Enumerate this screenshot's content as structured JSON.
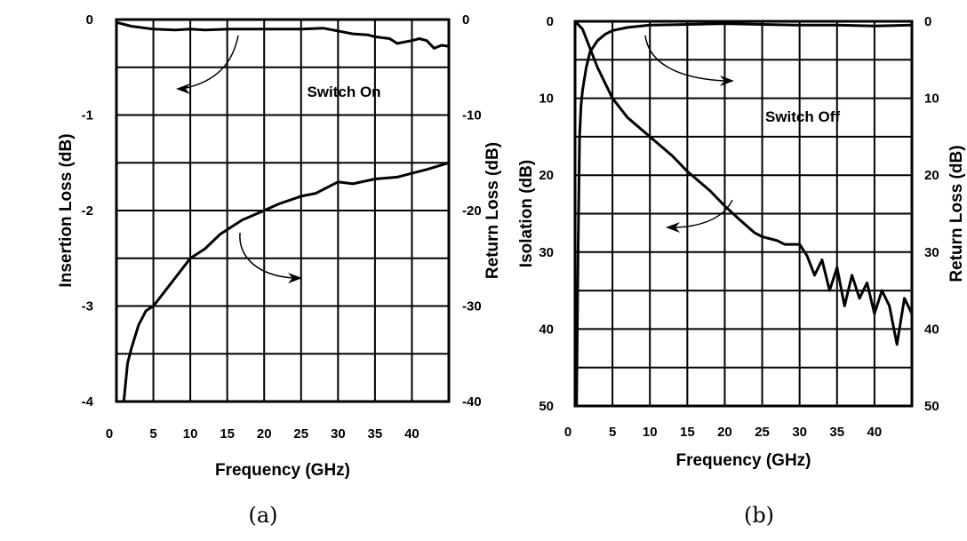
{
  "chart_data": [
    {
      "type": "line",
      "caption": "(a)",
      "annotation": "Switch On",
      "xlabel": "Frequency (GHz)",
      "ylabel": "Insertion Loss (dB)",
      "y2label": "Return Loss (dB)",
      "xlim": [
        0,
        45
      ],
      "ylim": [
        -4,
        0
      ],
      "y2lim": [
        -40,
        0
      ],
      "grid": true,
      "xticks": [
        "0",
        "5",
        "10",
        "15",
        "20",
        "25",
        "30",
        "35",
        "40"
      ],
      "yticks": [
        "0",
        "-1",
        "-2",
        "-3",
        "-4"
      ],
      "y2ticks": [
        "0",
        "-10",
        "-20",
        "-30",
        "-40"
      ],
      "series": [
        {
          "name": "Insertion Loss",
          "axis": "left",
          "x": [
            0,
            2,
            5,
            8,
            10,
            12,
            15,
            18,
            20,
            25,
            28,
            30,
            32,
            34,
            35,
            37,
            38,
            40,
            41,
            42,
            43,
            44,
            45
          ],
          "y": [
            -0.03,
            -0.07,
            -0.1,
            -0.11,
            -0.1,
            -0.11,
            -0.1,
            -0.1,
            -0.1,
            -0.1,
            -0.09,
            -0.12,
            -0.15,
            -0.16,
            -0.18,
            -0.2,
            -0.25,
            -0.22,
            -0.2,
            -0.22,
            -0.3,
            -0.27,
            -0.28
          ]
        },
        {
          "name": "Return Loss",
          "axis": "right",
          "x": [
            1,
            1.5,
            2,
            3,
            4,
            5,
            6,
            8,
            10,
            12,
            14,
            15,
            17,
            20,
            22,
            25,
            27,
            30,
            32,
            35,
            38,
            40,
            42,
            45
          ],
          "y": [
            -40,
            -36,
            -34.5,
            -32,
            -30.5,
            -30,
            -29,
            -27,
            -25,
            -24,
            -22.5,
            -22,
            -21,
            -20,
            -19.3,
            -18.5,
            -18.2,
            -17,
            -17.2,
            -16.7,
            -16.5,
            -16.1,
            -15.7,
            -15
          ]
        }
      ]
    },
    {
      "type": "line",
      "caption": "(b)",
      "annotation": "Switch Off",
      "xlabel": "Frequency (GHz)",
      "ylabel": "Isolation (dB)",
      "y2label": "Return Loss (dB)",
      "xlim": [
        0,
        45
      ],
      "ylim": [
        0,
        50
      ],
      "y2lim": [
        0,
        50
      ],
      "y_inverted": true,
      "grid": true,
      "xticks": [
        "0",
        "5",
        "10",
        "15",
        "20",
        "25",
        "30",
        "35",
        "40"
      ],
      "yticks": [
        "0",
        "10",
        "20",
        "30",
        "40",
        "50"
      ],
      "y2ticks": [
        "0",
        "10",
        "20",
        "30",
        "40",
        "50"
      ],
      "series": [
        {
          "name": "Isolation",
          "axis": "left",
          "x": [
            0,
            1,
            2,
            3,
            4,
            5,
            7,
            10,
            13,
            15,
            18,
            20,
            22,
            24,
            25,
            27,
            28,
            30,
            31,
            32,
            33,
            34,
            35,
            36,
            37,
            38,
            39,
            40,
            41,
            42,
            43,
            44,
            45
          ],
          "y": [
            0,
            1,
            3.5,
            6,
            8,
            10,
            12.5,
            15,
            17.5,
            19.5,
            22,
            24,
            25.8,
            27.5,
            28,
            28.5,
            29,
            29,
            30.5,
            33,
            31,
            35,
            32,
            37,
            33,
            36,
            34,
            38,
            35,
            37,
            42,
            36,
            38
          ]
        },
        {
          "name": "Return Loss",
          "axis": "right",
          "x": [
            0.2,
            0.4,
            0.6,
            0.8,
            1,
            1.5,
            2,
            3,
            4,
            5,
            7,
            10,
            15,
            20,
            25,
            30,
            35,
            40,
            45
          ],
          "y": [
            50,
            30,
            15,
            11,
            9,
            6,
            4,
            2.5,
            1.7,
            1.2,
            0.8,
            0.5,
            0.4,
            0.3,
            0.4,
            0.5,
            0.5,
            0.6,
            0.5
          ]
        }
      ]
    }
  ]
}
